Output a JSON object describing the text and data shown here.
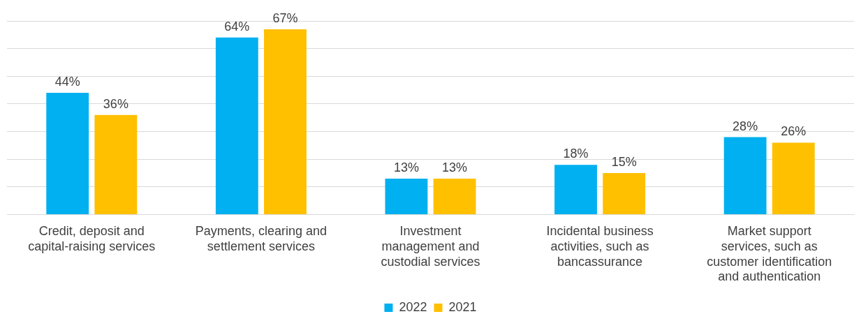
{
  "chart_data": {
    "type": "bar",
    "categories": [
      "Credit, deposit and capital-raising services",
      "Payments, clearing and settlement services",
      "Investment management and custodial services",
      "Incidental business activities, such as bancassurance",
      "Market support services, such as customer identification and authentication"
    ],
    "series": [
      {
        "name": "2022",
        "color": "#00b0f0",
        "values": [
          44,
          64,
          13,
          18,
          28
        ],
        "value_labels": [
          "44%",
          "64%",
          "13%",
          "18%",
          "28%"
        ]
      },
      {
        "name": "2021",
        "color": "#ffc000",
        "values": [
          36,
          67,
          13,
          15,
          26
        ],
        "value_labels": [
          "36%",
          "67%",
          "13%",
          "15%",
          "26%"
        ]
      }
    ],
    "tick_labels": "x",
    "grid": "y",
    "legend": "bottom"
  }
}
